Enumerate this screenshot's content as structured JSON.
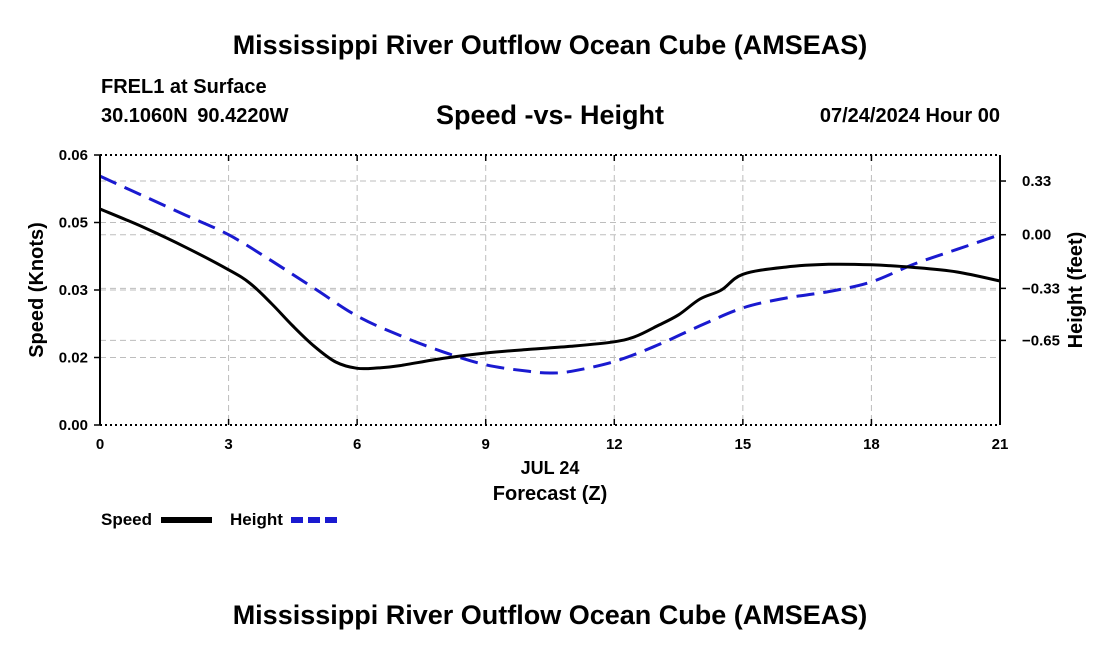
{
  "header": {
    "title": "Mississippi River Outflow Ocean Cube (AMSEAS)",
    "station": "FREL1 at Surface",
    "coords": "30.1060N  90.4220W",
    "chart_title": "Speed -vs- Height",
    "date": "07/24/2024 Hour 00"
  },
  "footer": {
    "title": "Mississippi River Outflow Ocean Cube (AMSEAS)"
  },
  "colors": {
    "speed": "#000000",
    "height": "#1a1ad0",
    "grid": "#bdbdbd"
  },
  "chart_data": {
    "type": "line",
    "title": "Speed -vs- Height",
    "xlabel": "Forecast (Z)",
    "xsublabel": "JUL 24",
    "xlim": [
      0,
      21
    ],
    "xticks": [
      "0",
      "3",
      "6",
      "9",
      "12",
      "15",
      "18",
      "21"
    ],
    "left_axis": {
      "label": "Speed (Knots)",
      "lim": [
        0,
        0.06
      ],
      "ticks": [
        {
          "v": 0.0,
          "label": "0.00"
        },
        {
          "v": 0.015,
          "label": "0.02"
        },
        {
          "v": 0.03,
          "label": "0.03"
        },
        {
          "v": 0.045,
          "label": "0.05"
        },
        {
          "v": 0.06,
          "label": "0.06"
        }
      ]
    },
    "right_axis": {
      "label": "Height (feet)",
      "lim": [
        -1.17,
        0.49
      ],
      "ticks": [
        {
          "v": 0.33,
          "label": "0.33"
        },
        {
          "v": 0.0,
          "label": "0.00"
        },
        {
          "v": -0.33,
          "label": "−0.33"
        },
        {
          "v": -0.65,
          "label": "−0.65"
        }
      ]
    },
    "grid": true,
    "legend": {
      "position": "bottom-left",
      "speed_label": "Speed",
      "height_label": "Height"
    },
    "series": [
      {
        "name": "Speed",
        "axis": "left",
        "x": [
          0,
          1,
          2,
          3,
          3.5,
          4,
          4.5,
          5,
          5.5,
          6,
          6.5,
          7,
          8,
          9,
          10,
          11,
          12,
          12.5,
          13,
          13.5,
          14,
          14.5,
          15,
          16,
          17,
          18,
          19,
          20,
          21
        ],
        "values": [
          0.048,
          0.044,
          0.0395,
          0.0345,
          0.0315,
          0.027,
          0.022,
          0.0175,
          0.014,
          0.0126,
          0.0127,
          0.0132,
          0.0148,
          0.016,
          0.0168,
          0.0175,
          0.0185,
          0.0197,
          0.022,
          0.0245,
          0.028,
          0.03,
          0.0335,
          0.0351,
          0.0357,
          0.0356,
          0.035,
          0.034,
          0.032
        ]
      },
      {
        "name": "Height",
        "axis": "right",
        "x": [
          0,
          1,
          2,
          3,
          4,
          5,
          6,
          7,
          8,
          9,
          10,
          10.5,
          11,
          12,
          13,
          14,
          15,
          16,
          17,
          18,
          19,
          20,
          21
        ],
        "values": [
          0.36,
          0.24,
          0.12,
          0.0,
          -0.16,
          -0.33,
          -0.5,
          -0.62,
          -0.72,
          -0.8,
          -0.84,
          -0.85,
          -0.84,
          -0.78,
          -0.68,
          -0.56,
          -0.45,
          -0.39,
          -0.35,
          -0.29,
          -0.18,
          -0.09,
          0.0
        ]
      }
    ]
  }
}
